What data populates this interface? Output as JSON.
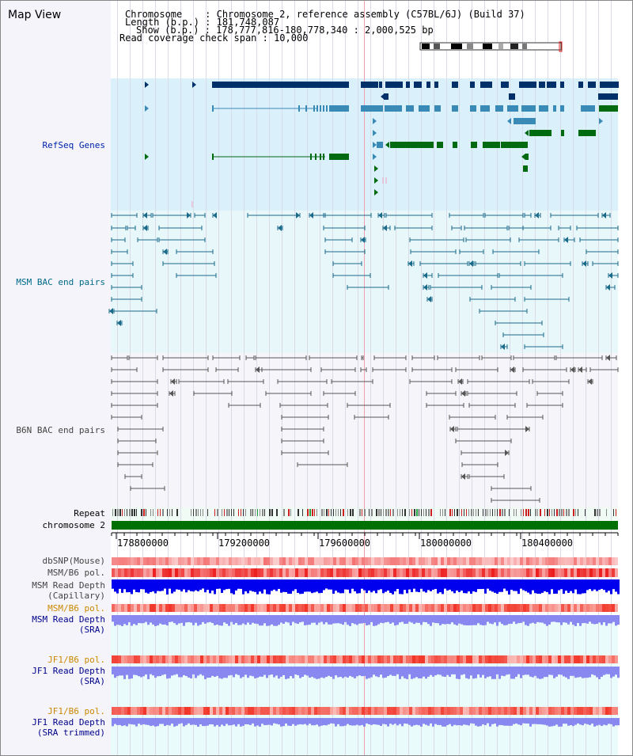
{
  "header": {
    "title": "Map View",
    "chromosome_key": "Chromosome",
    "chromosome_value": "Chromosome 2, reference assembly (C57BL/6J) (Build 37)",
    "length_key": "Length (b.p.)",
    "length_value": "181,748,087",
    "show_key": "Show (b.p.)",
    "show_value": "178,777,816-180,778,340 : 2,000,525 bp",
    "coverage_key": "Read coverage check span",
    "coverage_value": "10,000"
  },
  "tracks": {
    "refseq": "RefSeq Genes",
    "msm_bac": "MSM BAC end pairs",
    "b6n_bac": "B6N BAC end pairs",
    "repeat": "Repeat",
    "chromosome": "chromosome 2",
    "dbsnp": "dbSNP(Mouse)",
    "msm_b6_pol": "MSM/B6 pol.",
    "msm_depth_cap_1": "MSM Read Depth",
    "msm_depth_cap_2": "(Capillary)",
    "msm_b6_pol_2": "MSM/B6 pol.",
    "msm_depth_sra_1": "MSM Read Depth",
    "msm_depth_sra_2": "(SRA)",
    "jf1_b6_pol": "JF1/B6 pol.",
    "jf1_depth_sra_1": "JF1 Read Depth",
    "jf1_depth_sra_2": "(SRA)",
    "jf1_b6_pol_2": "JF1/B6 pol.",
    "jf1_depth_trim_1": "JF1 Read Depth",
    "jf1_depth_trim_2": "(SRA trimmed)"
  },
  "axis": {
    "ticks": [
      "178800000",
      "179200000",
      "179600000",
      "180000000",
      "180400000"
    ]
  },
  "colors": {
    "refseq_bg": "#daf0fb",
    "bac_bg": "#e7f7fa",
    "gene_navy": "#00306a",
    "gene_steel": "#3a8ab8",
    "gene_green": "#006a10",
    "msm_pair": "#1a6a8a",
    "b6n_pair": "#555555",
    "chromosome": "#007000",
    "depth_blue": "#0000ee",
    "depth_lavender": "#8888f0",
    "pol_red": "#ee3333"
  }
}
